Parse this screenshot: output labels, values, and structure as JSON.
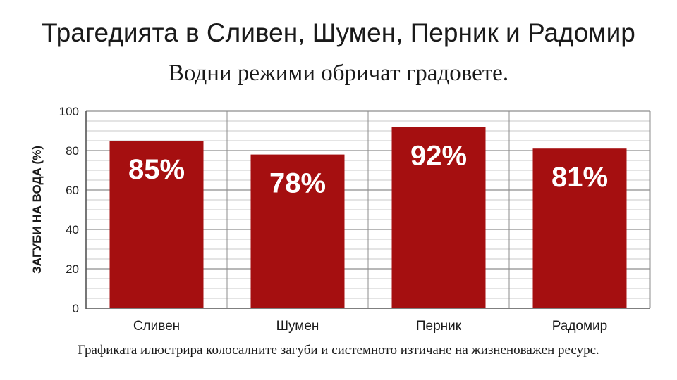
{
  "colors": {
    "bar": "#a50f10",
    "grid": "#c9c9c9",
    "axis": "#555555"
  },
  "chart_data": {
    "type": "bar",
    "title": "Трагедията в Сливен, Шумен, Перник и Радомир",
    "subtitle": "Водни режими обричат градовете.",
    "caption": "Графиката илюстрира колосалните загуби и системното изтичане на жизненоважен ресурс.",
    "ylabel": "ЗАГУБИ НА ВОДА (%)",
    "xlabel": "",
    "categories": [
      "Сливен",
      "Шумен",
      "Перник",
      "Радомир"
    ],
    "values": [
      85,
      78,
      92,
      81
    ],
    "data_labels": [
      "85%",
      "78%",
      "92%",
      "81%"
    ],
    "ylim": [
      0,
      100
    ],
    "yticks": [
      "0",
      "20",
      "40",
      "60",
      "80",
      "100"
    ],
    "grid": true,
    "legend": "none"
  }
}
